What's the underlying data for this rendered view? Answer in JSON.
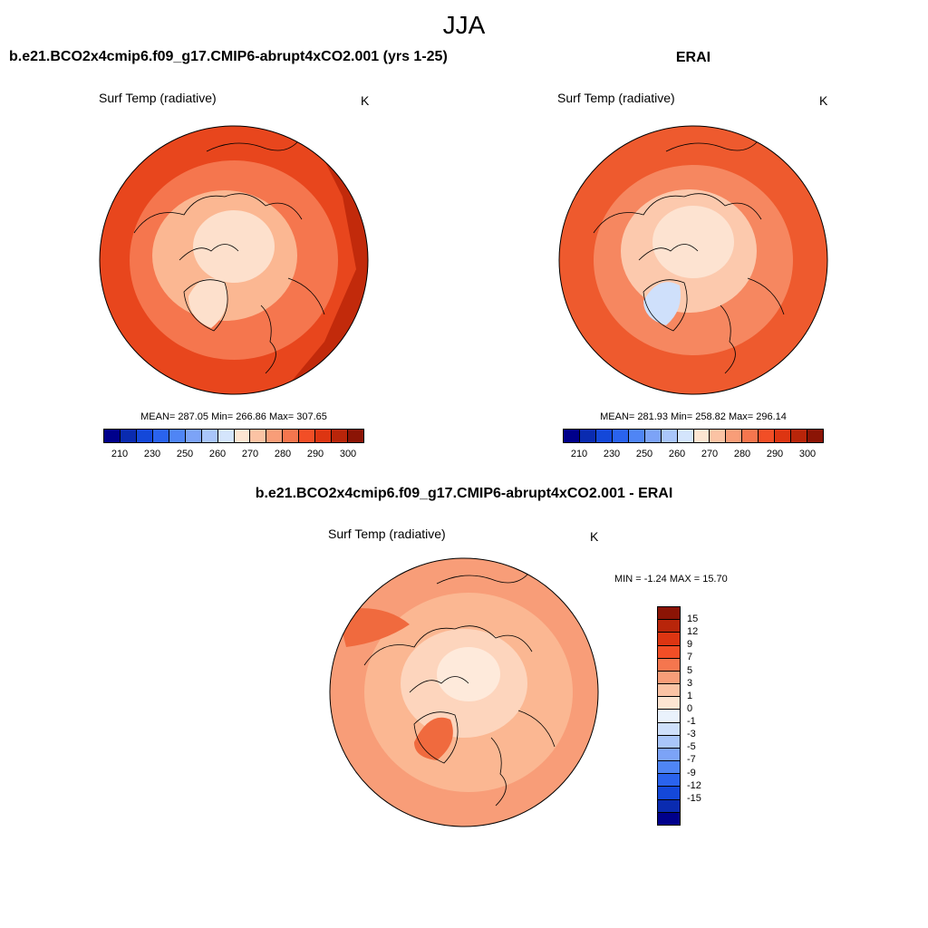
{
  "title": "JJA",
  "panels": {
    "model": {
      "title": "b.e21.BCO2x4cmip6.f09_g17.CMIP6-abrupt4xCO2.001 (yrs 1-25)",
      "variable": "Surf Temp (radiative)",
      "unit": "K",
      "stats": "MEAN= 287.05  Min= 266.86  Max= 307.65"
    },
    "obs": {
      "title": "ERAI",
      "variable": "Surf Temp (radiative)",
      "unit": "K",
      "stats": "MEAN= 281.93  Min= 258.82  Max= 296.14"
    },
    "diff": {
      "title": "b.e21.BCO2x4cmip6.f09_g17.CMIP6-abrupt4xCO2.001 - ERAI",
      "variable": "Surf Temp (radiative)",
      "unit": "K",
      "stats": "MIN =  -1.24 MAX =  15.70"
    }
  },
  "abs_colorbar": {
    "colors": [
      "#00008b",
      "#0a2bb0",
      "#1448d9",
      "#2a63ee",
      "#4f85f5",
      "#7ca3f7",
      "#a9c6fa",
      "#d4e5fc",
      "#fde5d2",
      "#fbc3a4",
      "#f89d78",
      "#f5764e",
      "#f24e26",
      "#dd3512",
      "#b8250a",
      "#8b1405"
    ],
    "labels": [
      "210",
      "230",
      "250",
      "260",
      "270",
      "280",
      "290",
      "300"
    ]
  },
  "diff_colorbar": {
    "colors": [
      "#8b1405",
      "#b8250a",
      "#dd3512",
      "#f24e26",
      "#f5764e",
      "#f89d78",
      "#fbc3a4",
      "#fde5d2",
      "#eaf2fc",
      "#cfe0fb",
      "#a9c6fa",
      "#7ca3f7",
      "#4f85f5",
      "#2a63ee",
      "#1448d9",
      "#0a2bb0",
      "#00008b"
    ],
    "labels": [
      "15",
      "12",
      "9",
      "7",
      "5",
      "3",
      "1",
      "0",
      "-1",
      "-3",
      "-5",
      "-7",
      "-9",
      "-12",
      "-15"
    ]
  },
  "map_colors": {
    "model_outer": "#e8461d",
    "model_mid": "#f5764e",
    "model_inner": "#fbb792",
    "model_pole": "#fde0cc",
    "model_hot": "#c22a0b",
    "obs_outer": "#ee5a2e",
    "obs_mid": "#f68760",
    "obs_inner": "#fcc9ad",
    "obs_pole": "#fde3d1",
    "obs_cold": "#cfe0fb",
    "diff_outer": "#f89d78",
    "diff_mid": "#fbb792",
    "diff_inner": "#fdd5bd",
    "diff_pole": "#feeadb",
    "diff_hot": "#f06a3e"
  }
}
